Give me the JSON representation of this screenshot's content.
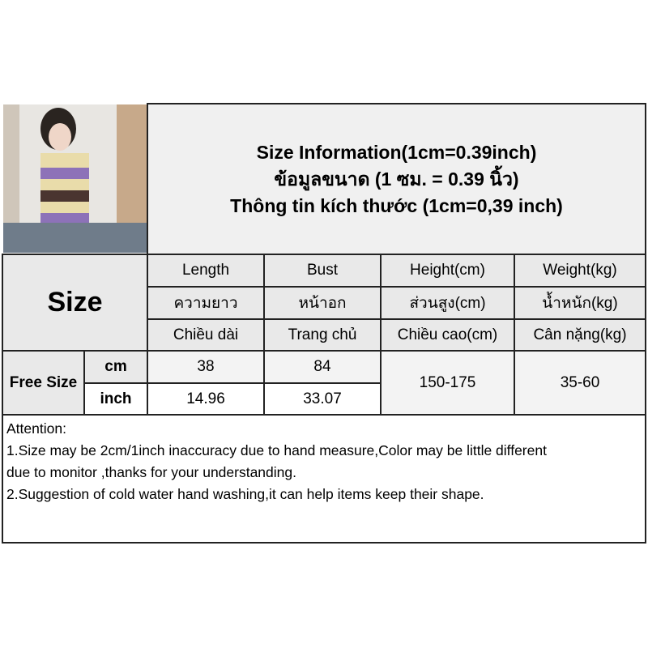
{
  "header": {
    "title_en": "Size Information(1cm=0.39inch)",
    "title_th": "ข้อมูลขนาด (1 ซม. = 0.39 นิ้ว)",
    "title_vi": "Thông tin kích thước (1cm=0,39 inch)"
  },
  "table": {
    "size_label": "Size",
    "columns": [
      {
        "en": "Length",
        "th": "ความยาว",
        "vi": "Chiều dài"
      },
      {
        "en": "Bust",
        "th": "หน้าอก",
        "vi": "Trang chủ"
      },
      {
        "en": "Height(cm)",
        "th": "ส่วนสูง(cm)",
        "vi": "Chiều cao(cm)"
      },
      {
        "en": "Weight(kg)",
        "th": "น้ำหนัก(kg)",
        "vi": "Cân nặng(kg)"
      }
    ],
    "row_label": "Free Size",
    "unit_cm": "cm",
    "unit_inch": "inch",
    "cm_values": [
      "38",
      "84"
    ],
    "inch_values": [
      "14.96",
      "33.07"
    ],
    "height": "150-175",
    "weight": "35-60"
  },
  "attention": {
    "title": "Attention:",
    "line1a": "1.Size may be 2cm/1inch inaccuracy due to hand measure,Color may be little different",
    "line1b": "due to monitor ,thanks for your understanding.",
    "line2": "2.Suggestion of cold water hand washing,it can help items keep their shape."
  }
}
